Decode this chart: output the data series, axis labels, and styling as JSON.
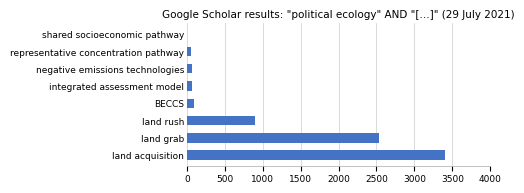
{
  "title": "Google Scholar results: \"political ecology\" AND \"[...]\" (29 July 2021)",
  "categories": [
    "shared socioeconomic pathway",
    "representative concentration pathway",
    "negative emissions technologies",
    "integrated assessment model",
    "BECCS",
    "land rush",
    "land grab",
    "land acquisition"
  ],
  "values": [
    5,
    60,
    65,
    70,
    90,
    900,
    2530,
    3400
  ],
  "bar_color": "#4472c4",
  "xlim": [
    0,
    4000
  ],
  "xticks": [
    0,
    500,
    1000,
    1500,
    2000,
    2500,
    3000,
    3500,
    4000
  ],
  "background_color": "#ffffff",
  "title_fontsize": 7.5,
  "label_fontsize": 6.5,
  "tick_fontsize": 6.5
}
